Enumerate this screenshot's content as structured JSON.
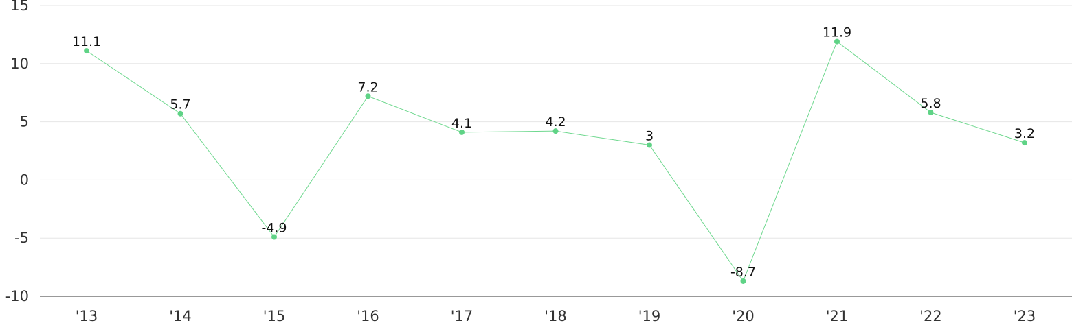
{
  "chart_data": {
    "type": "line",
    "categories": [
      "'13",
      "'14",
      "'15",
      "'16",
      "'17",
      "'18",
      "'19",
      "'20",
      "'21",
      "'22",
      "'23"
    ],
    "series": [
      {
        "values": [
          11.1,
          5.7,
          -4.9,
          7.2,
          4.1,
          4.2,
          3,
          -8.7,
          11.9,
          5.8,
          3.2
        ]
      }
    ],
    "data_labels": [
      "11.1",
      "5.7",
      "-4.9",
      "7.2",
      "4.1",
      "4.2",
      "3",
      "-8.7",
      "11.9",
      "5.8",
      "3.2"
    ],
    "y_ticks": [
      "15",
      "10",
      "5",
      "0",
      "-5",
      "-10"
    ],
    "y_tick_values": [
      15,
      10,
      5,
      0,
      -5,
      -10
    ],
    "ylim": [
      -10,
      15
    ],
    "grid": true,
    "colors": {
      "line": "#6fd88f",
      "marker": "#5fd386",
      "grid": "#e6e6e6",
      "axis": "#333333"
    }
  }
}
